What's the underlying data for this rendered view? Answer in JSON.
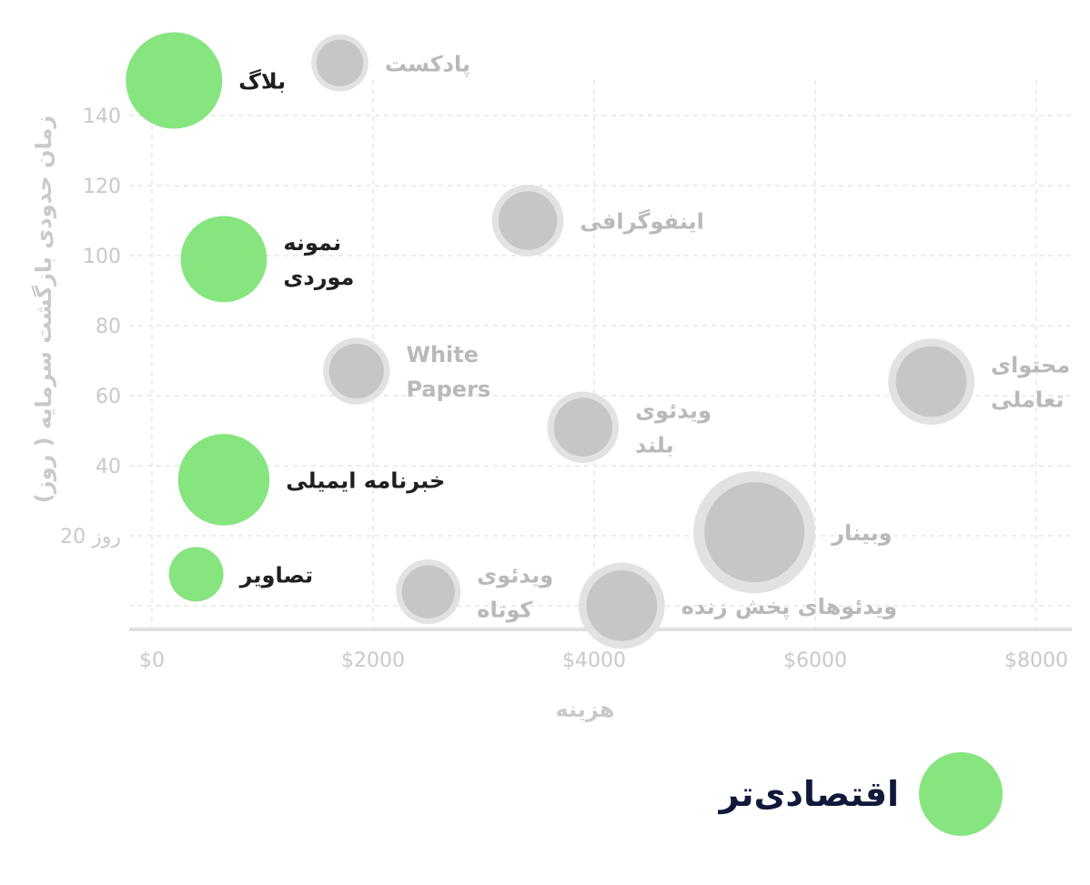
{
  "chart_data": {
    "type": "bubble-scatter",
    "xlabel": "هزینه",
    "ylabel": "زمان حدودی بازگشت سرمایه ( روز)",
    "xlim": [
      -500,
      8300
    ],
    "ylim": [
      -8,
      152
    ],
    "x_ticks": [
      {
        "value": 0,
        "label": "$0"
      },
      {
        "value": 2000,
        "label": "$2000"
      },
      {
        "value": 4000,
        "label": "$4000"
      },
      {
        "value": 6000,
        "label": "$6000"
      },
      {
        "value": 8000,
        "label": "$8000"
      }
    ],
    "y_ticks": [
      {
        "value": 20,
        "label": "20 روز"
      },
      {
        "value": 40,
        "label": "40"
      },
      {
        "value": 60,
        "label": "60"
      },
      {
        "value": 80,
        "label": "80"
      },
      {
        "value": 100,
        "label": "100"
      },
      {
        "value": 120,
        "label": "120"
      },
      {
        "value": 140,
        "label": "140"
      }
    ],
    "grid": true,
    "legend": {
      "label": "اقتصادی‌تر",
      "color": "#86e57f",
      "position": "bottom-right"
    },
    "colors": {
      "economical": "#86e57f",
      "other": "#c6c6c6",
      "other_ring": "#e2e2e2"
    },
    "points": [
      {
        "label": [
          "بلاگ"
        ],
        "x": 200,
        "y": 150,
        "size": 1.0,
        "economical": true
      },
      {
        "label": [
          "پادکست"
        ],
        "x": 1700,
        "y": 155,
        "size": 0.35,
        "economical": false
      },
      {
        "label": [
          "اینفوگرافی"
        ],
        "x": 3400,
        "y": 110,
        "size": 0.55,
        "economical": false
      },
      {
        "label": [
          "نمونه",
          "موردی"
        ],
        "x": 650,
        "y": 99,
        "size": 0.8,
        "economical": true
      },
      {
        "label": [
          "White",
          "Papers"
        ],
        "x": 1850,
        "y": 67,
        "size": 0.48,
        "economical": false
      },
      {
        "label": [
          "محتوای",
          "تعاملی"
        ],
        "x": 7050,
        "y": 64,
        "size": 0.8,
        "economical": false
      },
      {
        "label": [
          "ویدئوی",
          "بلند"
        ],
        "x": 3900,
        "y": 51,
        "size": 0.55,
        "economical": false
      },
      {
        "label": [
          "خبرنامه ایمیلی"
        ],
        "x": 650,
        "y": 36,
        "size": 0.9,
        "economical": true
      },
      {
        "label": [
          "وبینار"
        ],
        "x": 5450,
        "y": 21,
        "size": 1.6,
        "economical": false
      },
      {
        "label": [
          "تصاویر"
        ],
        "x": 400,
        "y": 9,
        "size": 0.32,
        "economical": true
      },
      {
        "label": [
          "ویدئوی",
          "کوتاه"
        ],
        "x": 2500,
        "y": 4,
        "size": 0.45,
        "economical": false
      },
      {
        "label": [
          "ویدئوهای پخش زنده"
        ],
        "x": 4250,
        "y": 0,
        "size": 0.8,
        "economical": false
      }
    ]
  }
}
